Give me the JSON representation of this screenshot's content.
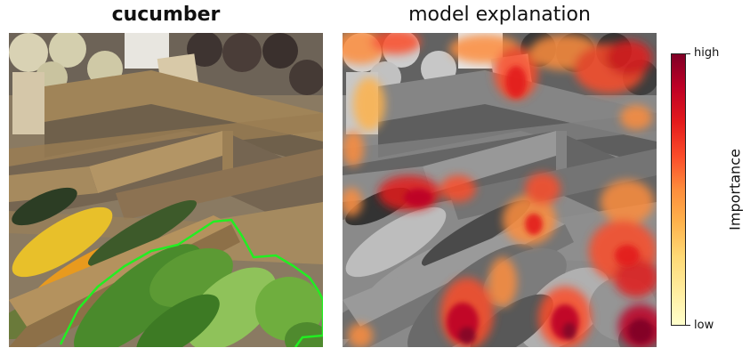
{
  "left_panel": {
    "title": "cucumber"
  },
  "right_panel": {
    "title": "model explanation"
  },
  "colorbar": {
    "high_label": "high",
    "low_label": "low",
    "axis_label": "Importance",
    "colors": [
      "#ffffcc",
      "#ffeda0",
      "#fed976",
      "#feb24c",
      "#fd8d3c",
      "#fc4e2a",
      "#e31a1c",
      "#bd0026",
      "#800026"
    ]
  },
  "segmentation_outline_color": "#22ee22"
}
